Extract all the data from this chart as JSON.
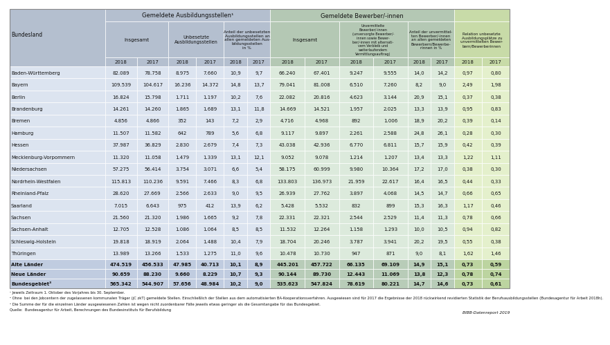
{
  "rows": [
    [
      "Baden-Württemberg",
      "82.089",
      "78.758",
      "8.975",
      "7.660",
      "10,9",
      "9,7",
      "66.240",
      "67.401",
      "9.247",
      "9.555",
      "14,0",
      "14,2",
      "0,97",
      "0,80"
    ],
    [
      "Bayern",
      "109.539",
      "104.617",
      "16.236",
      "14.372",
      "14,8",
      "13,7",
      "79.041",
      "81.008",
      "6.510",
      "7.260",
      "8,2",
      "9,0",
      "2,49",
      "1,98"
    ],
    [
      "Berlin",
      "16.824",
      "15.798",
      "1.711",
      "1.197",
      "10,2",
      "7,6",
      "22.082",
      "20.816",
      "4.623",
      "3.144",
      "20,9",
      "15,1",
      "0,37",
      "0,38"
    ],
    [
      "Brandenburg",
      "14.261",
      "14.260",
      "1.865",
      "1.689",
      "13,1",
      "11,8",
      "14.669",
      "14.521",
      "1.957",
      "2.025",
      "13,3",
      "13,9",
      "0,95",
      "0,83"
    ],
    [
      "Bremen",
      "4.856",
      "4.866",
      "352",
      "143",
      "7,2",
      "2,9",
      "4.716",
      "4.968",
      "892",
      "1.006",
      "18,9",
      "20,2",
      "0,39",
      "0,14"
    ],
    [
      "Hamburg",
      "11.507",
      "11.582",
      "642",
      "789",
      "5,6",
      "6,8",
      "9.117",
      "9.897",
      "2.261",
      "2.588",
      "24,8",
      "26,1",
      "0,28",
      "0,30"
    ],
    [
      "Hessen",
      "37.987",
      "36.829",
      "2.830",
      "2.679",
      "7,4",
      "7,3",
      "43.038",
      "42.936",
      "6.770",
      "6.811",
      "15,7",
      "15,9",
      "0,42",
      "0,39"
    ],
    [
      "Mecklenburg-Vorpommern",
      "11.320",
      "11.058",
      "1.479",
      "1.339",
      "13,1",
      "12,1",
      "9.052",
      "9.078",
      "1.214",
      "1.207",
      "13,4",
      "13,3",
      "1,22",
      "1,11"
    ],
    [
      "Niedersachsen",
      "57.275",
      "56.414",
      "3.754",
      "3.071",
      "6,6",
      "5,4",
      "58.175",
      "60.999",
      "9.980",
      "10.364",
      "17,2",
      "17,0",
      "0,38",
      "0,30"
    ],
    [
      "Nordrhein-Westfalen",
      "115.813",
      "110.236",
      "9.591",
      "7.466",
      "8,3",
      "6,8",
      "133.803",
      "136.973",
      "21.959",
      "22.617",
      "16,4",
      "16,5",
      "0,44",
      "0,33"
    ],
    [
      "Rheinland-Pfalz",
      "28.620",
      "27.669",
      "2.566",
      "2.633",
      "9,0",
      "9,5",
      "26.939",
      "27.762",
      "3.897",
      "4.068",
      "14,5",
      "14,7",
      "0,66",
      "0,65"
    ],
    [
      "Saarland",
      "7.015",
      "6.643",
      "975",
      "412",
      "13,9",
      "6,2",
      "5.428",
      "5.532",
      "832",
      "899",
      "15,3",
      "16,3",
      "1,17",
      "0,46"
    ],
    [
      "Sachsen",
      "21.560",
      "21.320",
      "1.986",
      "1.665",
      "9,2",
      "7,8",
      "22.331",
      "22.321",
      "2.544",
      "2.529",
      "11,4",
      "11,3",
      "0,78",
      "0,66"
    ],
    [
      "Sachsen-Anhalt",
      "12.705",
      "12.528",
      "1.086",
      "1.064",
      "8,5",
      "8,5",
      "11.532",
      "12.264",
      "1.158",
      "1.293",
      "10,0",
      "10,5",
      "0,94",
      "0,82"
    ],
    [
      "Schleswig-Holstein",
      "19.818",
      "18.919",
      "2.064",
      "1.488",
      "10,4",
      "7,9",
      "18.704",
      "20.246",
      "3.787",
      "3.941",
      "20,2",
      "19,5",
      "0,55",
      "0,38"
    ],
    [
      "Thüringen",
      "13.989",
      "13.266",
      "1.533",
      "1.275",
      "11,0",
      "9,6",
      "10.478",
      "10.730",
      "947",
      "871",
      "9,0",
      "8,1",
      "1,62",
      "1,46"
    ],
    [
      "Alte Länder",
      "474.519",
      "456.533",
      "47.985",
      "40.713",
      "10,1",
      "8,9",
      "445.201",
      "457.722",
      "66.135",
      "69.109",
      "14,9",
      "15,1",
      "0,73",
      "0,59"
    ],
    [
      "Neue Länder",
      "90.659",
      "88.230",
      "9.660",
      "8.229",
      "10,7",
      "9,3",
      "90.144",
      "89.730",
      "12.443",
      "11.069",
      "13,8",
      "12,3",
      "0,78",
      "0,74"
    ],
    [
      "Bundesgebiet³",
      "565.342",
      "544.907",
      "57.656",
      "48.984",
      "10,2",
      "9,0",
      "535.623",
      "547.824",
      "78.619",
      "80.221",
      "14,7",
      "14,6",
      "0,73",
      "0,61"
    ]
  ],
  "bold_row_indices": [
    16,
    17,
    18
  ],
  "footnotes": [
    "¹ Jeweils Zeitraum 1. Oktober des Vorjahres bis 30. September.",
    "² Ohne  bei den Jobcentern der zugelassenen kommunalen Träger (jC zkT) gemeldete Stellen. Einschließlich der Stellen aus dem automatisierten BA-Kooperationsverfahren. Ausgewiesen sind für 2017 die Ergebnisse der 2018 rückwirkend revidierten Statistik der Berufsausbildungsstellen (Bundesagentur für Arbeit 2018h).",
    "³ Die Summe der für die einzelnen Länder ausgewiesenen Zahlen ist wegen nicht zuordenbarer Fälle jeweils etwas geringer als die Gesamtangabe für das Bundesgebiet.",
    "Quelle:  Bundesagentur für Arbeit, Berechnungen des Bundesinstituts für Berufsbildung"
  ],
  "source_right": "BIBB-Datenreport 2019",
  "bg_h1": "#b4bfcf",
  "bg_h2": "#b4c8b4",
  "bg_h3": "#c8dba8",
  "bg_c1": "#dce4f0",
  "bg_c2": "#dceadc",
  "bg_c3": "#e4f0cc",
  "bg_b1": "#c0cce0",
  "bg_b2": "#b8ccb8",
  "bg_b3": "#bcd4a0",
  "year_headers": [
    "2018",
    "2017",
    "2018",
    "2017",
    "2018",
    "2017",
    "2018",
    "2017",
    "2018",
    "2017",
    "2018",
    "2017",
    "2018",
    "2017"
  ]
}
